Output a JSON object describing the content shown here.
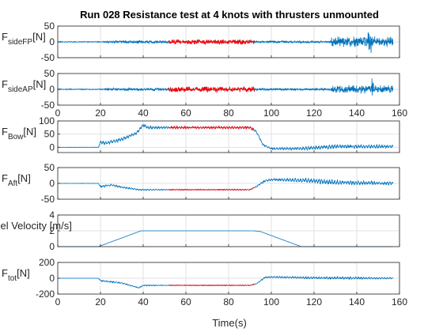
{
  "chart_data": {
    "type": "line",
    "title": "Run 028 Resistance test at 4 knots with thrusters unmounted",
    "xlabel": "Time(s)",
    "xlim": [
      0,
      160
    ],
    "xticks": [
      0,
      20,
      40,
      60,
      80,
      100,
      120,
      140,
      160
    ],
    "series_colors": {
      "signal": "#0072BD",
      "window": "#FF0000"
    },
    "highlight_window": [
      52,
      92
    ],
    "panels": [
      {
        "id": "sideFP",
        "ylabel": {
          "main": "F",
          "sub": "sideFP",
          "unit": "[N]"
        },
        "ylim": [
          -50,
          50
        ],
        "yticks": [
          -50,
          0,
          50
        ],
        "xticklabels": false,
        "segments": [
          {
            "t": [
              0,
              22
            ],
            "mean": 0,
            "noise": 1.5
          },
          {
            "t": [
              22,
              52
            ],
            "mean": 0,
            "noise": 5
          },
          {
            "t": [
              52,
              92
            ],
            "mean": 0,
            "noise": 8
          },
          {
            "t": [
              92,
              128
            ],
            "mean": 0,
            "noise": 4
          },
          {
            "t": [
              128,
              158
            ],
            "mean": 0,
            "noise": 18
          }
        ],
        "peak": {
          "t": 146,
          "amp": 45
        }
      },
      {
        "id": "sideAP",
        "ylabel": {
          "main": "F",
          "sub": "sideAP",
          "unit": "[N]"
        },
        "ylim": [
          -50,
          50
        ],
        "yticks": [
          -50,
          0,
          50
        ],
        "xticklabels": true,
        "segments": [
          {
            "t": [
              0,
              22
            ],
            "mean": 0,
            "noise": 1.5
          },
          {
            "t": [
              22,
              52
            ],
            "mean": 0,
            "noise": 5
          },
          {
            "t": [
              52,
              92
            ],
            "mean": 0,
            "noise": 9
          },
          {
            "t": [
              92,
              128
            ],
            "mean": 0,
            "noise": 4
          },
          {
            "t": [
              128,
              158
            ],
            "mean": 0,
            "noise": 14
          }
        ],
        "peak": {
          "t": 147,
          "amp": 30
        }
      },
      {
        "id": "Bow",
        "ylabel": {
          "main": "F",
          "sub": "Bow",
          "unit": "[N]"
        },
        "ylim": [
          -20,
          100
        ],
        "yticks": [
          0,
          50,
          100
        ],
        "xticklabels": false,
        "profile": [
          [
            0,
            0
          ],
          [
            19,
            0
          ],
          [
            20,
            20
          ],
          [
            22,
            15
          ],
          [
            30,
            30
          ],
          [
            37,
            55
          ],
          [
            40,
            85
          ],
          [
            42,
            75
          ],
          [
            52,
            75
          ],
          [
            90,
            75
          ],
          [
            93,
            60
          ],
          [
            96,
            10
          ],
          [
            100,
            -5
          ],
          [
            115,
            -5
          ],
          [
            130,
            3
          ],
          [
            157,
            3
          ]
        ],
        "noise": [
          [
            0,
            0.5
          ],
          [
            19,
            0.5
          ],
          [
            20,
            6
          ],
          [
            40,
            6
          ],
          [
            52,
            4
          ],
          [
            92,
            4
          ],
          [
            100,
            3
          ],
          [
            125,
            8
          ],
          [
            157,
            6
          ]
        ]
      },
      {
        "id": "Aft",
        "ylabel": {
          "main": "F",
          "sub": "Aft",
          "unit": "[N]"
        },
        "ylim": [
          -50,
          50
        ],
        "yticks": [
          -50,
          0,
          50
        ],
        "xticklabels": false,
        "profile": [
          [
            0,
            0
          ],
          [
            19,
            0
          ],
          [
            20,
            -10
          ],
          [
            25,
            -5
          ],
          [
            30,
            -12
          ],
          [
            38,
            -20
          ],
          [
            52,
            -20
          ],
          [
            90,
            -20
          ],
          [
            93,
            -10
          ],
          [
            97,
            8
          ],
          [
            100,
            12
          ],
          [
            115,
            10
          ],
          [
            130,
            3
          ],
          [
            157,
            0
          ]
        ],
        "noise": [
          [
            0,
            0.5
          ],
          [
            19,
            0.5
          ],
          [
            20,
            3
          ],
          [
            52,
            1.5
          ],
          [
            92,
            1.5
          ],
          [
            96,
            3
          ],
          [
            125,
            8
          ],
          [
            157,
            5
          ]
        ]
      },
      {
        "id": "velocity",
        "ylabel": {
          "main": "sel Velocity [m/s]",
          "sub": "",
          "unit": ""
        },
        "ylim": [
          0,
          4
        ],
        "yticks": [
          0,
          2,
          4
        ],
        "xticklabels": false,
        "profile": [
          [
            0,
            0
          ],
          [
            19,
            0
          ],
          [
            39,
            2
          ],
          [
            52,
            2
          ],
          [
            92,
            2
          ],
          [
            95,
            1.9
          ],
          [
            114,
            0
          ],
          [
            157,
            0
          ]
        ],
        "noise": [
          [
            0,
            0
          ],
          [
            157,
            0
          ]
        ]
      },
      {
        "id": "tot",
        "ylabel": {
          "main": "F",
          "sub": "tot",
          "unit": "[N]"
        },
        "ylim": [
          -200,
          200
        ],
        "yticks": [
          -200,
          0,
          200
        ],
        "xticklabels": true,
        "profile": [
          [
            0,
            0
          ],
          [
            19,
            0
          ],
          [
            20,
            -30
          ],
          [
            30,
            -60
          ],
          [
            38,
            -120
          ],
          [
            40,
            -90
          ],
          [
            52,
            -90
          ],
          [
            90,
            -90
          ],
          [
            93,
            -70
          ],
          [
            97,
            10
          ],
          [
            100,
            15
          ],
          [
            120,
            5
          ],
          [
            157,
            0
          ]
        ],
        "noise": [
          [
            0,
            1
          ],
          [
            19,
            1
          ],
          [
            20,
            10
          ],
          [
            52,
            5
          ],
          [
            92,
            5
          ],
          [
            96,
            8
          ],
          [
            125,
            15
          ],
          [
            157,
            10
          ]
        ]
      }
    ]
  }
}
